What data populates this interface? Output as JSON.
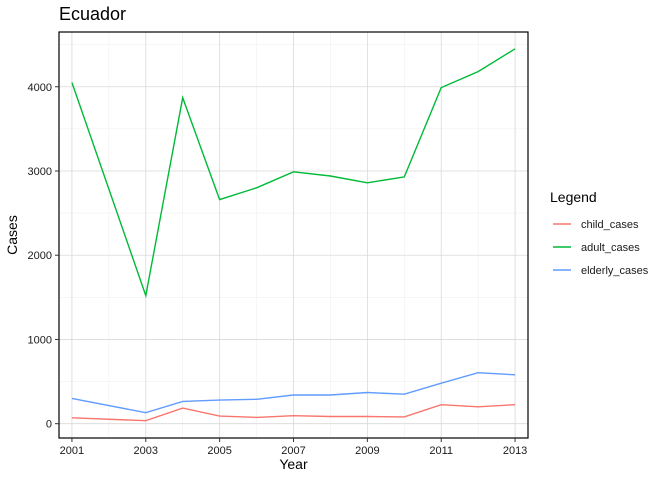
{
  "chart_data": {
    "type": "line",
    "title": "Ecuador",
    "xlabel": "Year",
    "ylabel": "Cases",
    "x": [
      2001,
      2003,
      2004,
      2005,
      2006,
      2007,
      2008,
      2009,
      2010,
      2011,
      2012,
      2013
    ],
    "xlim": [
      2000.65,
      2013.35
    ],
    "ylim": [
      -170,
      4650
    ],
    "xticks": [
      2001,
      2003,
      2005,
      2007,
      2009,
      2011,
      2013
    ],
    "yticks": [
      0,
      1000,
      2000,
      3000,
      4000
    ],
    "grid": true,
    "legend": {
      "title": "Legend",
      "position": "right"
    },
    "series": [
      {
        "name": "child_cases",
        "color": "#f8766d",
        "values": [
          70,
          35,
          185,
          90,
          75,
          95,
          85,
          85,
          80,
          225,
          200,
          225
        ]
      },
      {
        "name": "adult_cases",
        "color": "#00ba38",
        "values": [
          4050,
          1520,
          3870,
          2660,
          2800,
          2990,
          2940,
          2860,
          2930,
          3990,
          4180,
          4450
        ]
      },
      {
        "name": "elderly_cases",
        "color": "#619cff",
        "values": [
          300,
          130,
          265,
          280,
          290,
          340,
          340,
          370,
          350,
          480,
          605,
          580
        ]
      }
    ]
  }
}
